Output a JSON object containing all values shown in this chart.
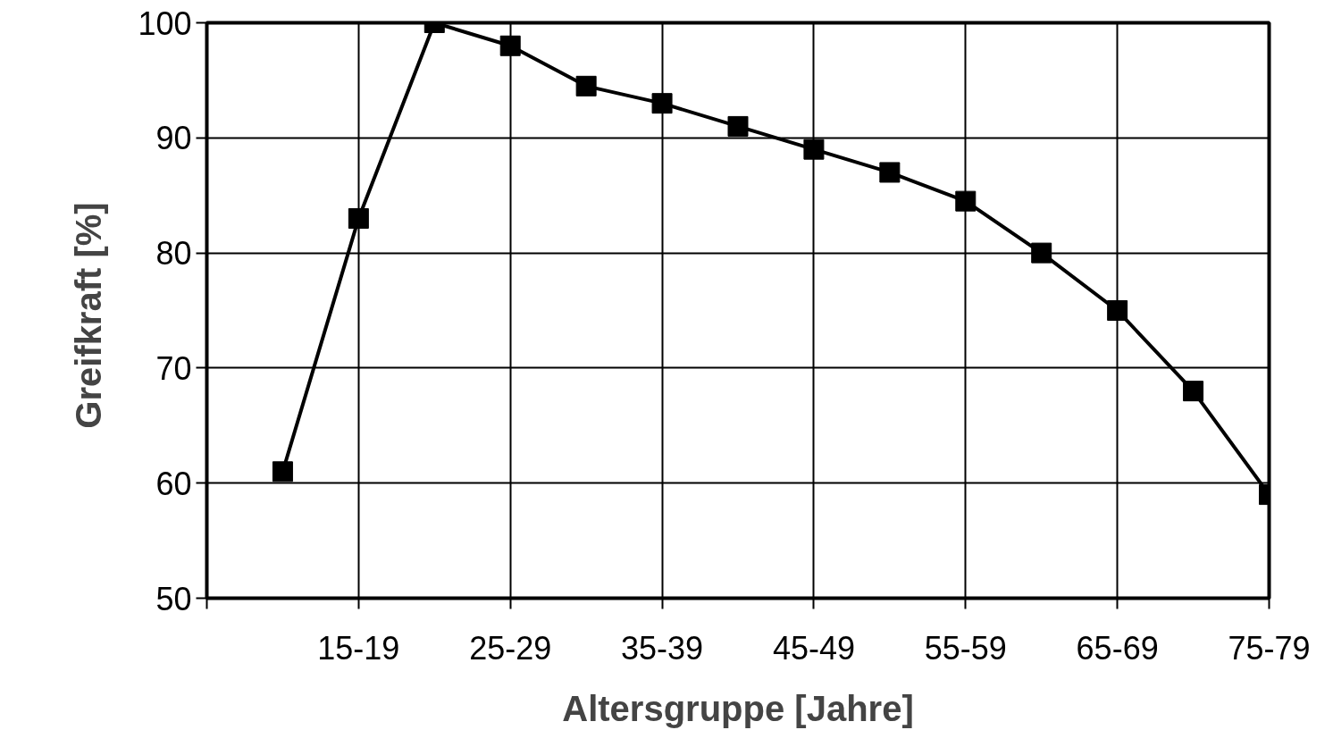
{
  "chart_data": {
    "type": "line",
    "xlabel": "Altersgruppe [Jahre]",
    "ylabel": "Greifkraft  [%]",
    "categories": [
      null,
      "15-19",
      null,
      "25-29",
      null,
      "35-39",
      null,
      "45-49",
      null,
      "55-59",
      null,
      "65-69",
      null,
      "75-79"
    ],
    "series": [
      {
        "color": "#000000",
        "values": [
          61,
          83,
          100,
          98,
          94.5,
          93,
          91,
          89,
          87,
          84.5,
          80,
          75,
          68,
          59
        ]
      }
    ],
    "ylim": [
      50,
      100
    ],
    "yticks": [
      50,
      60,
      70,
      80,
      90,
      100
    ],
    "grid": true,
    "marker": "square",
    "line_style": "solid"
  }
}
